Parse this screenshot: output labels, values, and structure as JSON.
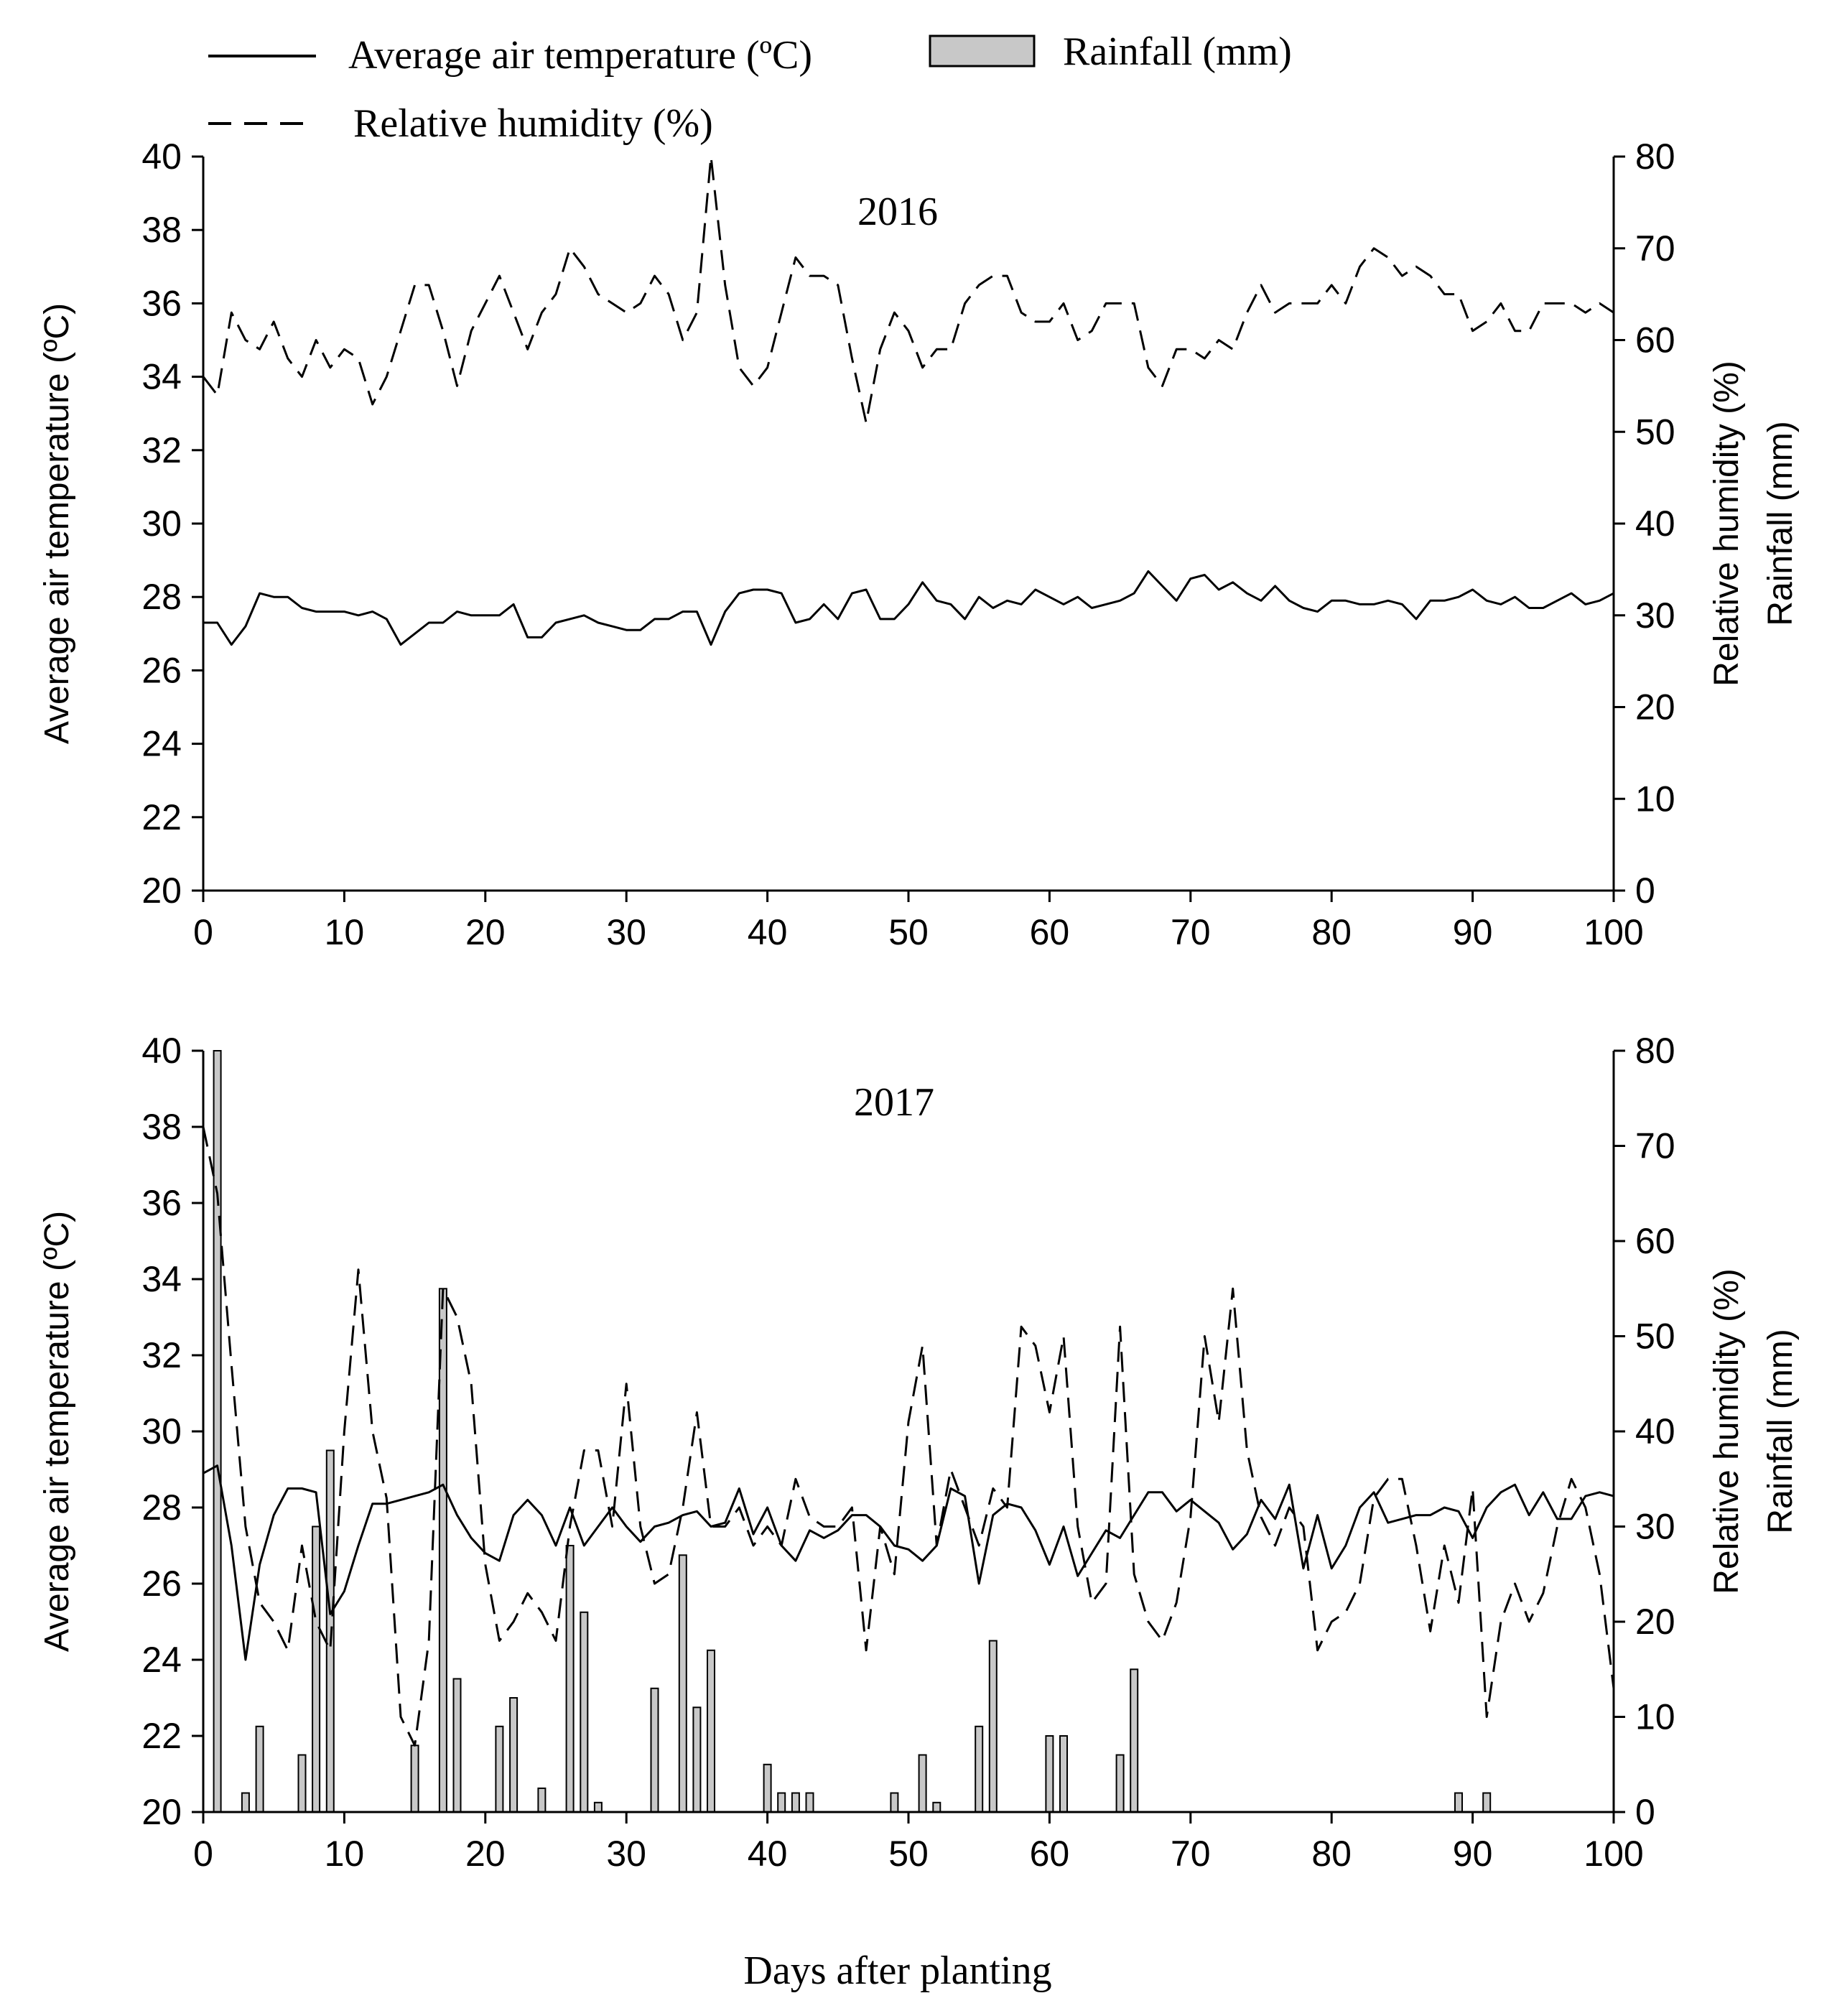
{
  "legend": {
    "temperature": "Average air temperature (ºC)",
    "rainfall": "Rainfall (mm)",
    "humidity": "Relative humidity  (%)"
  },
  "xlabel": "Days after planting",
  "colors": {
    "line": "#000000",
    "bar_fill": "#c8c8c8",
    "bar_stroke": "#000000"
  },
  "chart_data": [
    {
      "type": "line",
      "title": "2016",
      "ylabel_left": "Average air temperature (ºC)",
      "ylabel_right_1": "Relative humidity (%)",
      "ylabel_right_2": "Rainfall (mm)",
      "xlim": [
        0,
        100
      ],
      "ylim_left": [
        20,
        40
      ],
      "ylim_right": [
        0,
        80
      ],
      "x_ticks": [
        "0",
        "10",
        "20",
        "30",
        "40",
        "50",
        "60",
        "70",
        "80",
        "90",
        "100"
      ],
      "y_left_ticks": [
        "20",
        "22",
        "24",
        "26",
        "28",
        "30",
        "32",
        "34",
        "36",
        "38",
        "40"
      ],
      "y_right_ticks": [
        "0",
        "10",
        "20",
        "30",
        "40",
        "50",
        "60",
        "70",
        "80"
      ],
      "series": [
        {
          "name": "Average air temperature (ºC)",
          "axis": "left",
          "style": "solid",
          "x": [
            0,
            1,
            2,
            3,
            4,
            5,
            6,
            7,
            8,
            9,
            10,
            11,
            12,
            13,
            14,
            15,
            16,
            17,
            18,
            19,
            20,
            21,
            22,
            23,
            24,
            25,
            26,
            27,
            28,
            29,
            30,
            31,
            32,
            33,
            34,
            35,
            36,
            37,
            38,
            39,
            40,
            41,
            42,
            43,
            44,
            45,
            46,
            47,
            48,
            49,
            50,
            51,
            52,
            53,
            54,
            55,
            56,
            57,
            58,
            59,
            60,
            61,
            62,
            63,
            64,
            65,
            66,
            67,
            68,
            69,
            70,
            71,
            72,
            73,
            74,
            75,
            76,
            77,
            78,
            79,
            80,
            81,
            82,
            83,
            84,
            85,
            86,
            87,
            88,
            89,
            90,
            91,
            92,
            93,
            94,
            95,
            96,
            97,
            98,
            99,
            100
          ],
          "values": [
            27.3,
            27.3,
            26.7,
            27.2,
            28.1,
            28.0,
            28.0,
            27.7,
            27.6,
            27.6,
            27.6,
            27.5,
            27.6,
            27.4,
            26.7,
            27.0,
            27.3,
            27.3,
            27.6,
            27.5,
            27.5,
            27.5,
            27.8,
            26.9,
            26.9,
            27.3,
            27.4,
            27.5,
            27.3,
            27.2,
            27.1,
            27.1,
            27.4,
            27.4,
            27.6,
            27.6,
            26.7,
            27.6,
            28.1,
            28.2,
            28.2,
            28.1,
            27.3,
            27.4,
            27.8,
            27.4,
            28.1,
            28.2,
            27.4,
            27.4,
            27.8,
            28.4,
            27.9,
            27.8,
            27.4,
            28.0,
            27.7,
            27.9,
            27.8,
            28.2,
            28.0,
            27.8,
            28.0,
            27.7,
            27.8,
            27.9,
            28.1,
            28.7,
            28.3,
            27.9,
            28.5,
            28.6,
            28.2,
            28.4,
            28.1,
            27.9,
            28.3,
            27.9,
            27.7,
            27.6,
            27.9,
            27.9,
            27.8,
            27.8,
            27.9,
            27.8,
            27.4,
            27.9,
            27.9,
            28.0,
            28.2,
            27.9,
            27.8,
            28.0,
            27.7,
            27.7,
            27.9,
            28.1,
            27.8,
            27.9,
            28.1
          ]
        },
        {
          "name": "Relative humidity (%)",
          "axis": "right",
          "style": "dashed",
          "x": [
            0,
            1,
            2,
            3,
            4,
            5,
            6,
            7,
            8,
            9,
            10,
            11,
            12,
            13,
            14,
            15,
            16,
            17,
            18,
            19,
            20,
            21,
            22,
            23,
            24,
            25,
            26,
            27,
            28,
            29,
            30,
            31,
            32,
            33,
            34,
            35,
            36,
            37,
            38,
            39,
            40,
            41,
            42,
            43,
            44,
            45,
            46,
            47,
            48,
            49,
            50,
            51,
            52,
            53,
            54,
            55,
            56,
            57,
            58,
            59,
            60,
            61,
            62,
            63,
            64,
            65,
            66,
            67,
            68,
            69,
            70,
            71,
            72,
            73,
            74,
            75,
            76,
            77,
            78,
            79,
            80,
            81,
            82,
            83,
            84,
            85,
            86,
            87,
            88,
            89,
            90,
            91,
            92,
            93,
            94,
            95,
            96,
            97,
            98,
            99,
            100
          ],
          "values": [
            56,
            54,
            63,
            60,
            59,
            62,
            58,
            56,
            60,
            57,
            59,
            58,
            53,
            56,
            61,
            66,
            66,
            61,
            55,
            61,
            64,
            67,
            63,
            59,
            63,
            65,
            70,
            68,
            65,
            64,
            63,
            64,
            67,
            65,
            60,
            63,
            80,
            66,
            57,
            55,
            57,
            63,
            69,
            67,
            67,
            66,
            58,
            51,
            59,
            63,
            61,
            57,
            59,
            59,
            64,
            66,
            67,
            67,
            63,
            62,
            62,
            64,
            60,
            61,
            64,
            64,
            64,
            57,
            55,
            59,
            59,
            58,
            60,
            59,
            63,
            66,
            63,
            64,
            64,
            64,
            66,
            64,
            68,
            70,
            69,
            67,
            68,
            67,
            65,
            65,
            61,
            62,
            64,
            61,
            61,
            64,
            64,
            64,
            63,
            64,
            63
          ]
        }
      ]
    },
    {
      "type": "line+bar",
      "title": "2017",
      "ylabel_left": "Average air temperature (ºC)",
      "ylabel_right_1": "Relative humidity (%)",
      "ylabel_right_2": "Rainfall (mm)",
      "xlim": [
        0,
        100
      ],
      "ylim_left": [
        20,
        40
      ],
      "ylim_right": [
        0,
        80
      ],
      "x_ticks": [
        "0",
        "10",
        "20",
        "30",
        "40",
        "50",
        "60",
        "70",
        "80",
        "90",
        "100"
      ],
      "y_left_ticks": [
        "20",
        "22",
        "24",
        "26",
        "28",
        "30",
        "32",
        "34",
        "36",
        "38",
        "40"
      ],
      "y_right_ticks": [
        "0",
        "10",
        "20",
        "30",
        "40",
        "50",
        "60",
        "70",
        "80"
      ],
      "bars": {
        "name": "Rainfall (mm)",
        "axis": "right",
        "x": [
          1,
          3,
          4,
          7,
          8,
          9,
          15,
          17,
          18,
          21,
          22,
          24,
          26,
          27,
          28,
          32,
          34,
          35,
          36,
          40,
          41,
          42,
          43,
          49,
          51,
          52,
          55,
          56,
          60,
          61,
          65,
          66,
          89,
          91
        ],
        "values": [
          80,
          2,
          9,
          6,
          30,
          38,
          7,
          55,
          14,
          9,
          12,
          2.5,
          28,
          21,
          1,
          13,
          27,
          11,
          17,
          5,
          2,
          2,
          2,
          2,
          6,
          1,
          9,
          18,
          8,
          8,
          6,
          15,
          2,
          2
        ]
      },
      "series": [
        {
          "name": "Average air temperature (ºC)",
          "axis": "left",
          "style": "solid",
          "x": [
            0,
            1,
            2,
            3,
            4,
            5,
            6,
            7,
            8,
            9,
            10,
            11,
            12,
            13,
            14,
            15,
            16,
            17,
            18,
            19,
            20,
            21,
            22,
            23,
            24,
            25,
            26,
            27,
            28,
            29,
            30,
            31,
            32,
            33,
            34,
            35,
            36,
            37,
            38,
            39,
            40,
            41,
            42,
            43,
            44,
            45,
            46,
            47,
            48,
            49,
            50,
            51,
            52,
            53,
            54,
            55,
            56,
            57,
            58,
            59,
            60,
            61,
            62,
            63,
            64,
            65,
            66,
            67,
            68,
            69,
            70,
            71,
            72,
            73,
            74,
            75,
            76,
            77,
            78,
            79,
            80,
            81,
            82,
            83,
            84,
            85,
            86,
            87,
            88,
            89,
            90,
            91,
            92,
            93,
            94,
            95,
            96,
            97,
            98,
            99,
            100
          ],
          "values": [
            28.9,
            29.1,
            27.0,
            24.0,
            26.5,
            27.8,
            28.5,
            28.5,
            28.4,
            25.2,
            25.8,
            27.0,
            28.1,
            28.1,
            28.2,
            28.3,
            28.4,
            28.6,
            27.8,
            27.2,
            26.8,
            26.6,
            27.8,
            28.2,
            27.8,
            27.0,
            28.0,
            27.0,
            27.5,
            28.0,
            27.5,
            27.1,
            27.5,
            27.6,
            27.8,
            27.9,
            27.5,
            27.6,
            28.5,
            27.3,
            28.0,
            27.0,
            26.6,
            27.4,
            27.2,
            27.4,
            27.8,
            27.8,
            27.5,
            27.0,
            26.9,
            26.6,
            27.0,
            28.5,
            28.3,
            26.0,
            27.8,
            28.1,
            28.0,
            27.4,
            26.5,
            27.5,
            26.2,
            26.8,
            27.4,
            27.2,
            27.8,
            28.4,
            28.4,
            27.9,
            28.2,
            27.9,
            27.6,
            26.9,
            27.3,
            28.2,
            27.7,
            28.6,
            26.4,
            27.8,
            26.4,
            27.0,
            28.0,
            28.4,
            27.6,
            27.7,
            27.8,
            27.8,
            28.0,
            27.9,
            27.2,
            28.0,
            28.4,
            28.6,
            27.8,
            28.4,
            27.7,
            27.7,
            28.3,
            28.4,
            28.3
          ]
        },
        {
          "name": "Relative humidity (%)",
          "axis": "right",
          "style": "dashed",
          "x": [
            0,
            1,
            2,
            3,
            4,
            5,
            6,
            7,
            8,
            9,
            10,
            11,
            12,
            13,
            14,
            15,
            16,
            17,
            18,
            19,
            20,
            21,
            22,
            23,
            24,
            25,
            26,
            27,
            28,
            29,
            30,
            31,
            32,
            33,
            34,
            35,
            36,
            37,
            38,
            39,
            40,
            41,
            42,
            43,
            44,
            45,
            46,
            47,
            48,
            49,
            50,
            51,
            52,
            53,
            54,
            55,
            56,
            57,
            58,
            59,
            60,
            61,
            62,
            63,
            64,
            65,
            66,
            67,
            68,
            69,
            70,
            71,
            72,
            73,
            74,
            75,
            76,
            77,
            78,
            79,
            80,
            81,
            82,
            83,
            84,
            85,
            86,
            87,
            88,
            89,
            90,
            91,
            92,
            93,
            94,
            95,
            96,
            97,
            98,
            99,
            100
          ],
          "values": [
            72,
            65,
            47,
            30,
            22,
            20,
            17,
            28,
            20,
            17,
            40,
            57,
            40,
            33,
            10,
            7,
            18,
            55,
            52,
            45,
            26,
            18,
            20,
            23,
            21,
            18,
            30,
            38,
            38,
            30,
            45,
            30,
            24,
            25,
            32,
            42,
            30,
            30,
            32,
            28,
            30,
            28,
            35,
            31,
            30,
            30,
            32,
            17,
            30,
            25,
            41,
            49,
            28,
            36,
            32,
            28,
            34,
            32,
            51,
            49,
            42,
            50,
            30,
            22,
            24,
            51,
            25,
            20,
            18,
            22,
            31,
            50,
            41,
            55,
            38,
            31,
            28,
            32,
            30,
            17,
            20,
            21,
            24,
            33,
            35,
            35,
            28,
            19,
            28,
            22,
            34,
            10,
            20,
            24,
            20,
            23,
            30,
            35,
            32,
            25,
            13
          ]
        }
      ]
    }
  ]
}
